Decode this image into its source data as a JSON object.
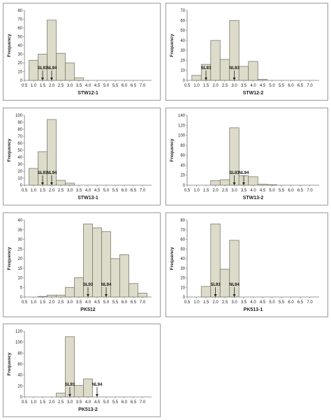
{
  "chart_data": [
    {
      "type": "bar",
      "xlabel": "STW12-1",
      "ylabel": "Frequency",
      "x_ticks": [
        "0.5",
        "1.0",
        "1.5",
        "2.0",
        "2.5",
        "3.0",
        "3.5",
        "4.0",
        "4.5",
        "5.0",
        "5.5",
        "6.0",
        "6.5",
        "7.0"
      ],
      "y_ticks": [
        "0",
        "10",
        "20",
        "30",
        "40",
        "50",
        "60",
        "70",
        "80"
      ],
      "ylim": [
        0,
        80
      ],
      "xlim": [
        0.5,
        7.5
      ],
      "bin_width": 0.5,
      "bins": [
        {
          "x": 1.0,
          "value": 23
        },
        {
          "x": 1.5,
          "value": 30
        },
        {
          "x": 2.0,
          "value": 69
        },
        {
          "x": 2.5,
          "value": 31
        },
        {
          "x": 3.0,
          "value": 20
        },
        {
          "x": 3.5,
          "value": 3
        }
      ],
      "markers": [
        {
          "label": "SL93",
          "x": 1.5
        },
        {
          "label": "NL94",
          "x": 2.0
        }
      ]
    },
    {
      "type": "bar",
      "xlabel": "STW12-2",
      "ylabel": "Frequency",
      "x_ticks": [
        "0.5",
        "1.0",
        "1.5",
        "2.0",
        "2.5",
        "3.0",
        "3.5",
        "4.0",
        "4.5",
        "5.0",
        "5.5",
        "6.0",
        "6.5",
        "7.0"
      ],
      "y_ticks": [
        "0",
        "10",
        "20",
        "30",
        "40",
        "50",
        "60",
        "70"
      ],
      "ylim": [
        0,
        70
      ],
      "xlim": [
        0.5,
        7.5
      ],
      "bin_width": 0.5,
      "bins": [
        {
          "x": 1.0,
          "value": 5
        },
        {
          "x": 1.5,
          "value": 16
        },
        {
          "x": 2.0,
          "value": 40
        },
        {
          "x": 2.5,
          "value": 21
        },
        {
          "x": 3.0,
          "value": 60
        },
        {
          "x": 3.5,
          "value": 14
        },
        {
          "x": 4.0,
          "value": 19
        },
        {
          "x": 4.5,
          "value": 1
        }
      ],
      "markers": [
        {
          "label": "SL93",
          "x": 1.5
        },
        {
          "label": "NL93",
          "x": 3.0
        }
      ]
    },
    {
      "type": "bar",
      "xlabel": "STW13-1",
      "ylabel": "Frequency",
      "x_ticks": [
        "0.5",
        "1.0",
        "1.5",
        "2.0",
        "2.5",
        "3.0",
        "3.5",
        "4.0",
        "4.5",
        "5.0",
        "5.5",
        "6.0",
        "6.5",
        "7.0"
      ],
      "y_ticks": [
        "0",
        "10",
        "20",
        "30",
        "40",
        "50",
        "60",
        "70",
        "80",
        "90",
        "100"
      ],
      "ylim": [
        0,
        100
      ],
      "xlim": [
        0.5,
        7.5
      ],
      "bin_width": 0.5,
      "bins": [
        {
          "x": 1.0,
          "value": 24
        },
        {
          "x": 1.5,
          "value": 48
        },
        {
          "x": 2.0,
          "value": 94
        },
        {
          "x": 2.5,
          "value": 7
        },
        {
          "x": 3.0,
          "value": 3
        }
      ],
      "markers": [
        {
          "label": "SL93",
          "x": 1.5
        },
        {
          "label": "NL94",
          "x": 2.0
        }
      ]
    },
    {
      "type": "bar",
      "xlabel": "STW13-2",
      "ylabel": "Frequency",
      "x_ticks": [
        "0.5",
        "1.0",
        "1.5",
        "2.0",
        "2.5",
        "3.0",
        "3.5",
        "4.0",
        "4.5",
        "5.0",
        "5.5",
        "6.0",
        "6.5",
        "7.0"
      ],
      "y_ticks": [
        "0",
        "20",
        "40",
        "60",
        "80",
        "100",
        "120",
        "140"
      ],
      "ylim": [
        0,
        140
      ],
      "xlim": [
        0.5,
        7.5
      ],
      "bin_width": 0.5,
      "bins": [
        {
          "x": 2.0,
          "value": 9
        },
        {
          "x": 2.5,
          "value": 11
        },
        {
          "x": 3.0,
          "value": 115
        },
        {
          "x": 3.5,
          "value": 19
        },
        {
          "x": 4.0,
          "value": 17
        },
        {
          "x": 4.5,
          "value": 2
        },
        {
          "x": 5.0,
          "value": 1
        }
      ],
      "markers": [
        {
          "label": "SL93",
          "x": 3.0
        },
        {
          "label": "NL94",
          "x": 3.5
        }
      ]
    },
    {
      "type": "bar",
      "xlabel": "PK512",
      "ylabel": "Frequency",
      "x_ticks": [
        "0.5",
        "1.0",
        "1.5",
        "2.0",
        "2.5",
        "3.0",
        "3.5",
        "4.0",
        "4.5",
        "5.0",
        "5.5",
        "6.0",
        "6.5",
        "7.0"
      ],
      "y_ticks": [
        "0",
        "5",
        "10",
        "15",
        "20",
        "25",
        "30",
        "35",
        "40"
      ],
      "ylim": [
        0,
        40
      ],
      "xlim": [
        0.5,
        7.5
      ],
      "bin_width": 0.5,
      "bins": [
        {
          "x": 1.5,
          "value": 0.3
        },
        {
          "x": 2.0,
          "value": 1
        },
        {
          "x": 2.5,
          "value": 1
        },
        {
          "x": 3.0,
          "value": 5
        },
        {
          "x": 3.5,
          "value": 10
        },
        {
          "x": 4.0,
          "value": 38
        },
        {
          "x": 4.5,
          "value": 36
        },
        {
          "x": 5.0,
          "value": 34
        },
        {
          "x": 5.5,
          "value": 20
        },
        {
          "x": 6.0,
          "value": 22
        },
        {
          "x": 6.5,
          "value": 7
        },
        {
          "x": 7.0,
          "value": 2
        }
      ],
      "markers": [
        {
          "label": "SL93",
          "x": 4.0
        },
        {
          "label": "NL94",
          "x": 5.0
        }
      ]
    },
    {
      "type": "bar",
      "xlabel": "PK513-1",
      "ylabel": "Frequency",
      "x_ticks": [
        "0.5",
        "1.0",
        "1.5",
        "2.0",
        "2.5",
        "3.0",
        "3.5",
        "4.0",
        "4.5",
        "5.0",
        "5.5",
        "6.0",
        "6.5",
        "7.0"
      ],
      "y_ticks": [
        "0",
        "10",
        "20",
        "30",
        "40",
        "50",
        "60",
        "70",
        "80"
      ],
      "ylim": [
        0,
        80
      ],
      "xlim": [
        0.5,
        7.5
      ],
      "bin_width": 0.5,
      "bins": [
        {
          "x": 1.5,
          "value": 11
        },
        {
          "x": 2.0,
          "value": 76
        },
        {
          "x": 2.5,
          "value": 29
        },
        {
          "x": 3.0,
          "value": 59
        }
      ],
      "markers": [
        {
          "label": "SL93",
          "x": 2.0
        },
        {
          "label": "NL94",
          "x": 3.0
        }
      ]
    },
    {
      "type": "bar",
      "xlabel": "PK513-2",
      "ylabel": "Frequency",
      "x_ticks": [
        "0.5",
        "1.0",
        "1.5",
        "2.0",
        "2.5",
        "3.0",
        "3.5",
        "4.0",
        "4.5",
        "5.0",
        "5.5",
        "6.0",
        "6.5",
        "7.0"
      ],
      "y_ticks": [
        "0",
        "20",
        "40",
        "60",
        "80",
        "100",
        "120"
      ],
      "ylim": [
        0,
        120
      ],
      "xlim": [
        0.5,
        7.5
      ],
      "bin_width": 0.5,
      "bins": [
        {
          "x": 2.5,
          "value": 7
        },
        {
          "x": 3.0,
          "value": 110
        },
        {
          "x": 3.5,
          "value": 21
        },
        {
          "x": 4.0,
          "value": 33
        }
      ],
      "markers": [
        {
          "label": "SL93",
          "x": 3.0
        },
        {
          "label": "NL94",
          "x": 4.5
        }
      ]
    }
  ]
}
